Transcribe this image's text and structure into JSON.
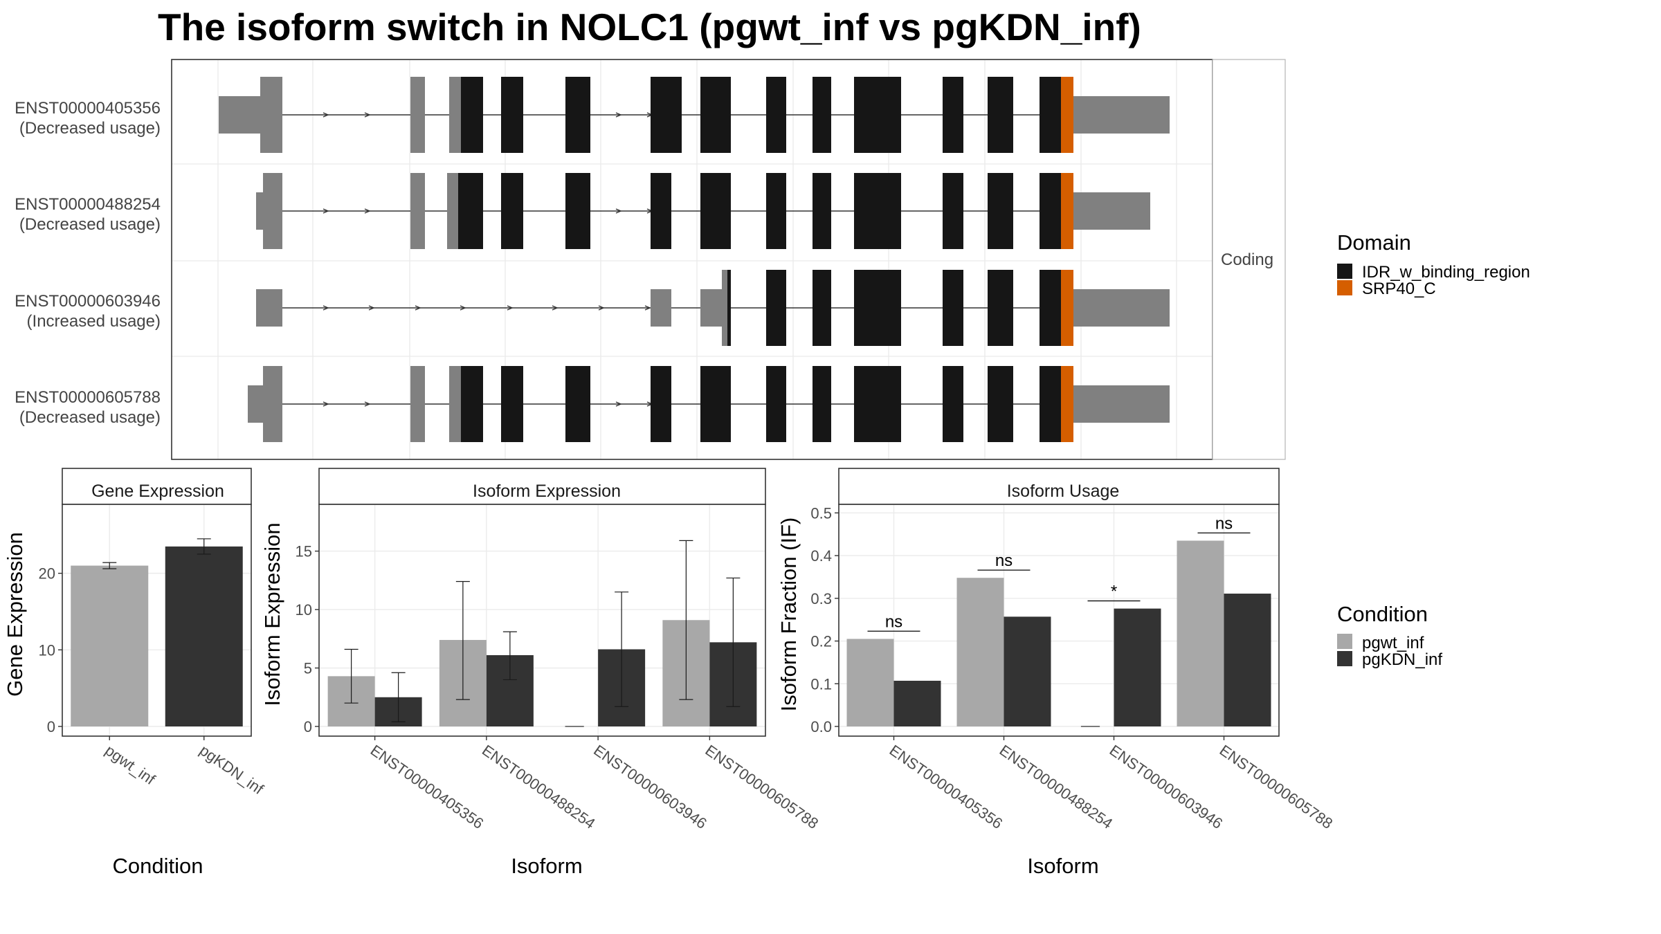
{
  "title": "The isoform switch in NOLC1 (pgwt_inf vs pgKDN_inf)",
  "colors": {
    "utr": "#808080",
    "cds": "#161616",
    "idr": "#161616",
    "srp40": "#D55E00",
    "cond1": "#a8a8a8",
    "cond2": "#333333",
    "grid": "#ebebeb",
    "panel_border": "#333333",
    "strip_bg": "#ffffff"
  },
  "structure": {
    "facet_label": "Coding",
    "isoforms": [
      {
        "id": "ENST00000405356",
        "status": "(Decreased usage)"
      },
      {
        "id": "ENST00000488254",
        "status": "(Decreased usage)"
      },
      {
        "id": "ENST00000603946",
        "status": "(Increased usage)"
      },
      {
        "id": "ENST00000605788",
        "status": "(Decreased usage)"
      }
    ]
  },
  "domain_legend": {
    "title": "Domain",
    "items": [
      {
        "label": "IDR_w_binding_region",
        "color": "#161616"
      },
      {
        "label": "SRP40_C",
        "color": "#D55E00"
      }
    ]
  },
  "condition_legend": {
    "title": "Condition",
    "items": [
      {
        "label": "pgwt_inf",
        "color": "#a8a8a8"
      },
      {
        "label": "pgKDN_inf",
        "color": "#333333"
      }
    ]
  },
  "chart_data": [
    {
      "type": "bar",
      "title": "Gene Expression",
      "xlabel": "Condition",
      "ylabel": "Gene Expression",
      "categories": [
        "pgwt_inf",
        "pgKDN_inf"
      ],
      "values": [
        21.0,
        23.5
      ],
      "error_low": [
        20.6,
        22.5
      ],
      "error_high": [
        21.4,
        24.5
      ],
      "ylim": [
        0,
        29
      ],
      "yticks": [
        "0",
        "10",
        "20"
      ]
    },
    {
      "type": "bar",
      "title": "Isoform Expression",
      "xlabel": "Isoform",
      "ylabel": "Isoform Expression",
      "categories": [
        "ENST00000405356",
        "ENST00000488254",
        "ENST00000603946",
        "ENST00000605788"
      ],
      "series": [
        {
          "name": "pgwt_inf",
          "values": [
            4.3,
            7.4,
            0,
            9.1
          ],
          "error_low": [
            2.0,
            2.3,
            0,
            2.3
          ],
          "error_high": [
            6.6,
            12.4,
            0,
            15.9
          ]
        },
        {
          "name": "pgKDN_inf",
          "values": [
            2.5,
            6.1,
            6.6,
            7.2
          ],
          "error_low": [
            0.4,
            4.0,
            1.7,
            1.7
          ],
          "error_high": [
            4.6,
            8.1,
            11.5,
            12.7
          ]
        }
      ],
      "ylim": [
        0,
        19
      ],
      "yticks": [
        "0",
        "5",
        "10",
        "15"
      ]
    },
    {
      "type": "bar",
      "title": "Isoform Usage",
      "xlabel": "Isoform",
      "ylabel": "Isoform Fraction (IF)",
      "categories": [
        "ENST00000405356",
        "ENST00000488254",
        "ENST00000603946",
        "ENST00000605788"
      ],
      "series": [
        {
          "name": "pgwt_inf",
          "values": [
            0.205,
            0.348,
            0.0,
            0.435
          ]
        },
        {
          "name": "pgKDN_inf",
          "values": [
            0.107,
            0.257,
            0.276,
            0.311
          ]
        }
      ],
      "significance": [
        "ns",
        "ns",
        "*",
        "ns"
      ],
      "ylim": [
        0,
        0.52
      ],
      "yticks": [
        "0.0",
        "0.1",
        "0.2",
        "0.3",
        "0.4",
        "0.5"
      ]
    }
  ]
}
